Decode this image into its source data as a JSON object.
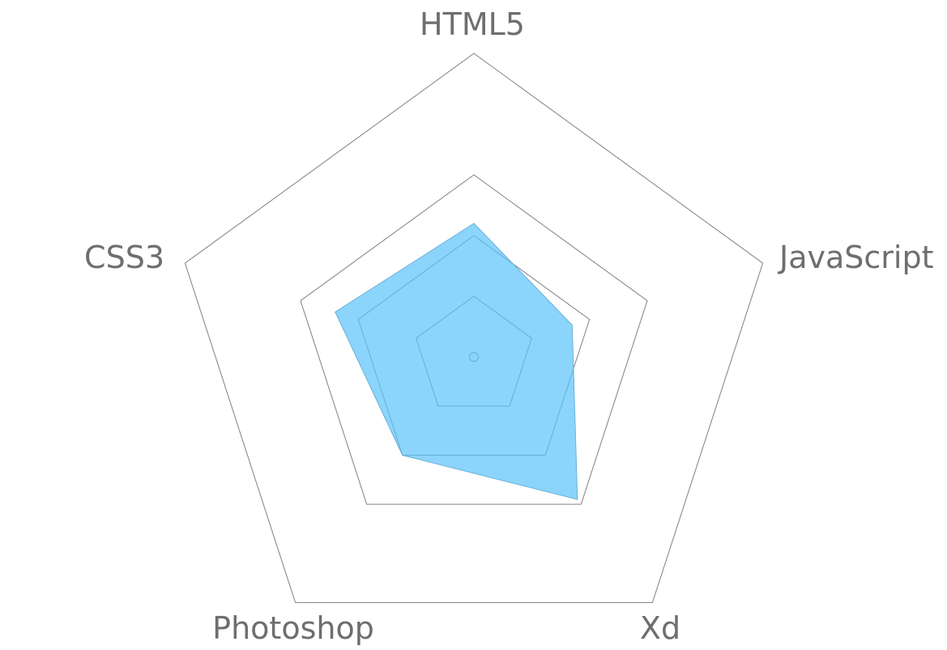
{
  "chart_data": {
    "type": "radar",
    "categories": [
      "HTML5",
      "JavaScript",
      "Xd",
      "Photoshop",
      "CSS3"
    ],
    "scale": {
      "min": 0,
      "max": 5,
      "rings": [
        1,
        2,
        3,
        5
      ]
    },
    "series": [
      {
        "values": [
          2.2,
          1.7,
          2.9,
          2.0,
          2.4
        ],
        "fill": "#5ac2f9",
        "fill_opacity": 0.7
      }
    ],
    "title": "",
    "grid": true,
    "legend": "none"
  },
  "colors": {
    "grid": "#808080",
    "label": "#6e6e6e",
    "series_fill": "#5ac2f9"
  }
}
